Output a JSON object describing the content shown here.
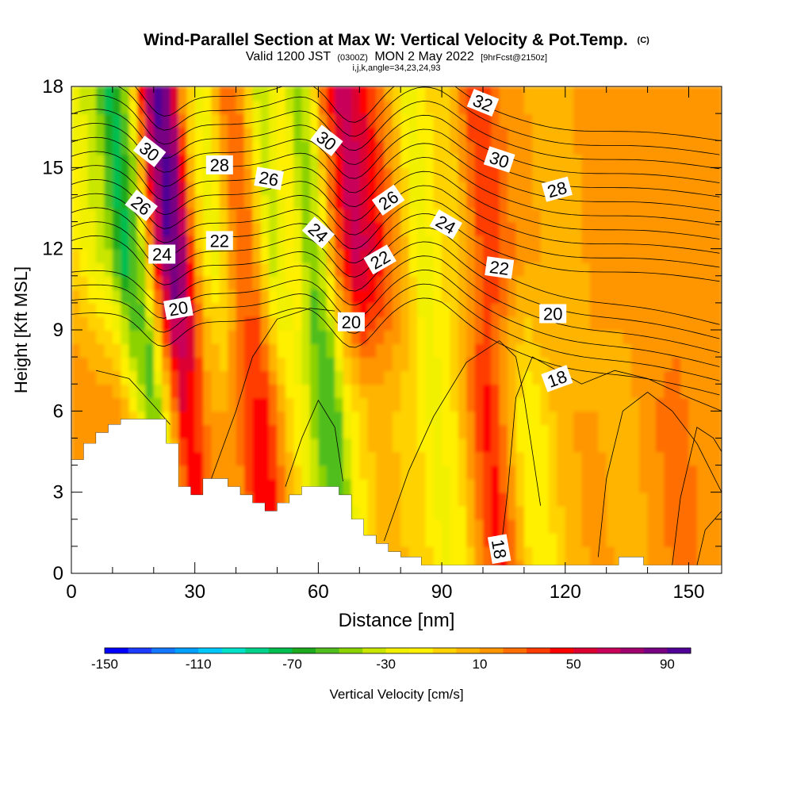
{
  "chart_data": {
    "type": "heatmap",
    "title": "Wind-Parallel Section at Max W: Vertical Velocity & Pot.Temp.",
    "title_suffix": "(C)",
    "subtitle_parts": [
      "Valid 1200 JST",
      "(0300Z)",
      "MON 2 May 2022",
      "[9hrFcst@2150z]"
    ],
    "subtitle2": "i,j,k,angle=34,23,24,93",
    "xlabel": "Distance [nm]",
    "ylabel": "Height [Kft MSL]",
    "xlim": [
      0,
      158
    ],
    "ylim": [
      0,
      18
    ],
    "x_ticks": [
      0,
      30,
      60,
      90,
      120,
      150
    ],
    "y_ticks": [
      0,
      3,
      6,
      9,
      12,
      15,
      18
    ],
    "colorbar": {
      "label": "Vertical Velocity [cm/s]",
      "ticks": [
        "-150",
        "-110",
        "-70",
        "-30",
        "10",
        "50",
        "90"
      ],
      "colors": [
        "#0000ff",
        "#1e3cff",
        "#1478ff",
        "#00a0ff",
        "#00c8ff",
        "#00e1c8",
        "#00d28c",
        "#00be50",
        "#1eaa1e",
        "#50be1e",
        "#8cd200",
        "#c8e600",
        "#f0f000",
        "#fff000",
        "#ffd200",
        "#ffb400",
        "#ff9600",
        "#ff6e00",
        "#ff3c00",
        "#ff0000",
        "#dc0032",
        "#c8005a",
        "#a0006e",
        "#780082",
        "#500096"
      ]
    },
    "terrain": [
      [
        0,
        4.2
      ],
      [
        3,
        4.2
      ],
      [
        3,
        4.8
      ],
      [
        6,
        4.8
      ],
      [
        6,
        5.2
      ],
      [
        9,
        5.2
      ],
      [
        9,
        5.5
      ],
      [
        12,
        5.5
      ],
      [
        12,
        5.7
      ],
      [
        23,
        5.7
      ],
      [
        23,
        4.8
      ],
      [
        26,
        4.8
      ],
      [
        26,
        3.2
      ],
      [
        29,
        3.2
      ],
      [
        29,
        2.9
      ],
      [
        32,
        2.9
      ],
      [
        32,
        3.5
      ],
      [
        38,
        3.5
      ],
      [
        38,
        3.2
      ],
      [
        41,
        3.2
      ],
      [
        41,
        2.9
      ],
      [
        44,
        2.9
      ],
      [
        44,
        2.6
      ],
      [
        47,
        2.6
      ],
      [
        47,
        2.3
      ],
      [
        50,
        2.3
      ],
      [
        50,
        2.6
      ],
      [
        53,
        2.6
      ],
      [
        53,
        2.9
      ],
      [
        56,
        2.9
      ],
      [
        56,
        3.2
      ],
      [
        65,
        3.2
      ],
      [
        65,
        2.9
      ],
      [
        68,
        2.9
      ],
      [
        68,
        2.0
      ],
      [
        71,
        2.0
      ],
      [
        71,
        1.4
      ],
      [
        74,
        1.4
      ],
      [
        74,
        1.1
      ],
      [
        77,
        1.1
      ],
      [
        77,
        0.8
      ],
      [
        80,
        0.8
      ],
      [
        80,
        0.6
      ],
      [
        85,
        0.6
      ],
      [
        85,
        0.3
      ],
      [
        133,
        0.3
      ],
      [
        133,
        0.6
      ],
      [
        139,
        0.6
      ],
      [
        139,
        0.3
      ],
      [
        158,
        0.3
      ]
    ],
    "w_columns": [
      {
        "x": 0,
        "w_low": 15,
        "w_high": 15
      },
      {
        "x": 6,
        "w_low": 20,
        "w_high": -20
      },
      {
        "x": 12,
        "w_low": 15,
        "w_high": -40
      },
      {
        "x": 16,
        "w_low": -20,
        "w_high": -80
      },
      {
        "x": 20,
        "w_low": -60,
        "w_high": -40
      },
      {
        "x": 24,
        "w_low": 5,
        "w_high": 60
      },
      {
        "x": 27,
        "w_low": 50,
        "w_high": 95
      },
      {
        "x": 30,
        "w_low": 40,
        "w_high": 80
      },
      {
        "x": 34,
        "w_low": 10,
        "w_high": 0
      },
      {
        "x": 38,
        "w_low": 10,
        "w_high": -30
      },
      {
        "x": 43,
        "w_low": 40,
        "w_high": 20
      },
      {
        "x": 47,
        "w_low": 45,
        "w_high": 20
      },
      {
        "x": 52,
        "w_low": 0,
        "w_high": -40
      },
      {
        "x": 57,
        "w_low": -30,
        "w_high": -10
      },
      {
        "x": 61,
        "w_low": -60,
        "w_high": -50
      },
      {
        "x": 64,
        "w_low": -60,
        "w_high": -30
      },
      {
        "x": 67,
        "w_low": -20,
        "w_high": 20
      },
      {
        "x": 72,
        "w_low": 0,
        "w_high": 70
      },
      {
        "x": 78,
        "w_low": 0,
        "w_high": 45
      },
      {
        "x": 84,
        "w_low": -10,
        "w_high": 5
      },
      {
        "x": 88,
        "w_low": -25,
        "w_high": -30
      },
      {
        "x": 93,
        "w_low": -10,
        "w_high": -10
      },
      {
        "x": 98,
        "w_low": 30,
        "w_high": 0
      },
      {
        "x": 101,
        "w_low": 45,
        "w_high": 20
      },
      {
        "x": 104,
        "w_low": 25,
        "w_high": 40
      },
      {
        "x": 108,
        "w_low": -10,
        "w_high": 30
      },
      {
        "x": 112,
        "w_low": -20,
        "w_high": 15
      },
      {
        "x": 117,
        "w_low": 0,
        "w_high": 10
      },
      {
        "x": 122,
        "w_low": 10,
        "w_high": 0
      },
      {
        "x": 128,
        "w_low": 10,
        "w_high": 10
      },
      {
        "x": 135,
        "w_low": 5,
        "w_high": 15
      },
      {
        "x": 142,
        "w_low": 20,
        "w_high": 10
      },
      {
        "x": 148,
        "w_low": 25,
        "w_high": 10
      },
      {
        "x": 153,
        "w_low": 10,
        "w_high": 10
      },
      {
        "x": 158,
        "w_low": 15,
        "w_high": 10
      }
    ],
    "contour_labels": [
      {
        "text": "30",
        "x": 19,
        "y": 15.6,
        "angle": 38
      },
      {
        "text": "28",
        "x": 36,
        "y": 15.1,
        "angle": 0
      },
      {
        "text": "26",
        "x": 17,
        "y": 13.6,
        "angle": 38
      },
      {
        "text": "26",
        "x": 48,
        "y": 14.6,
        "angle": 10
      },
      {
        "text": "22",
        "x": 36,
        "y": 12.3,
        "angle": 0
      },
      {
        "text": "24",
        "x": 22,
        "y": 11.8,
        "angle": 0
      },
      {
        "text": "20",
        "x": 26,
        "y": 9.8,
        "angle": -10
      },
      {
        "text": "30",
        "x": 62,
        "y": 16.0,
        "angle": 38
      },
      {
        "text": "24",
        "x": 60,
        "y": 12.6,
        "angle": 42
      },
      {
        "text": "26",
        "x": 77,
        "y": 13.8,
        "angle": -35
      },
      {
        "text": "22",
        "x": 75,
        "y": 11.6,
        "angle": -30
      },
      {
        "text": "20",
        "x": 68,
        "y": 9.3,
        "angle": 0
      },
      {
        "text": "24",
        "x": 91,
        "y": 12.9,
        "angle": 30
      },
      {
        "text": "32",
        "x": 100,
        "y": 17.4,
        "angle": 22
      },
      {
        "text": "30",
        "x": 104,
        "y": 15.3,
        "angle": 18
      },
      {
        "text": "28",
        "x": 118,
        "y": 14.2,
        "angle": -15
      },
      {
        "text": "22",
        "x": 104,
        "y": 11.3,
        "angle": 8
      },
      {
        "text": "20",
        "x": 117,
        "y": 9.6,
        "angle": 0
      },
      {
        "text": "18",
        "x": 118,
        "y": 7.2,
        "angle": -20
      },
      {
        "text": "18",
        "x": 104,
        "y": 0.9,
        "angle": 80
      }
    ]
  }
}
